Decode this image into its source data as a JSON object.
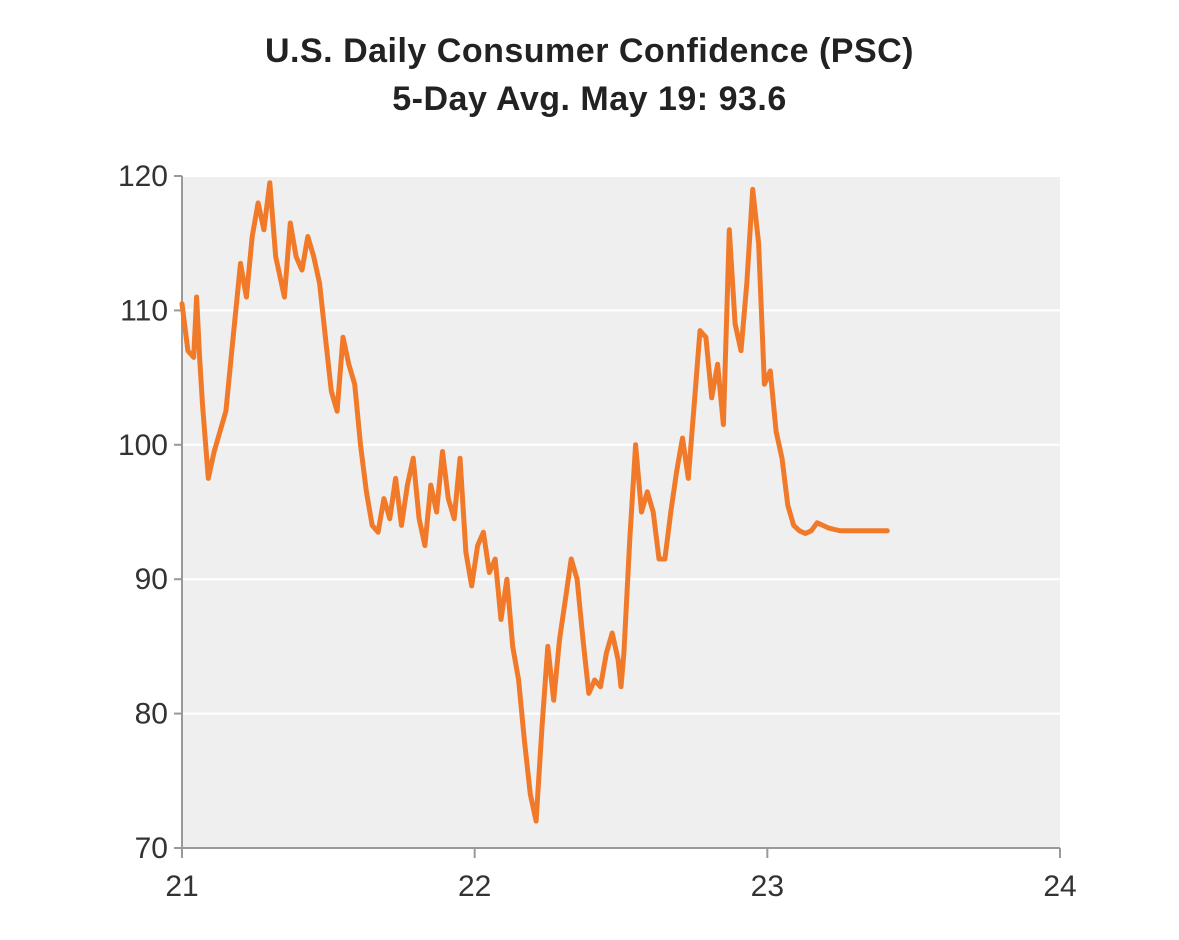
{
  "chart_data": {
    "type": "line",
    "title": "U.S. Daily Consumer Confidence (PSC)",
    "subtitle": "5-Day Avg.  May 19: 93.6",
    "xlabel": "",
    "ylabel": "",
    "xlim": [
      21,
      24
    ],
    "ylim": [
      70,
      120
    ],
    "x_ticks": [
      21,
      22,
      23,
      24
    ],
    "x_tick_labels": [
      "21",
      "22",
      "23",
      "24"
    ],
    "y_ticks": [
      70,
      80,
      90,
      100,
      110,
      120
    ],
    "y_tick_labels": [
      "70",
      "80",
      "90",
      "100",
      "110",
      "120"
    ],
    "grid": true,
    "colors": {
      "line": "#F07A2A",
      "plot_background": "#EFEFEF",
      "grid": "#FFFFFF",
      "axis": "#999999"
    },
    "series": [
      {
        "name": "5-Day Avg.",
        "x": [
          21.0,
          21.02,
          21.04,
          21.05,
          21.06,
          21.07,
          21.09,
          21.11,
          21.13,
          21.15,
          21.17,
          21.2,
          21.22,
          21.24,
          21.26,
          21.28,
          21.3,
          21.32,
          21.34,
          21.35,
          21.37,
          21.39,
          21.41,
          21.43,
          21.45,
          21.47,
          21.49,
          21.51,
          21.53,
          21.55,
          21.57,
          21.59,
          21.61,
          21.63,
          21.65,
          21.67,
          21.69,
          21.71,
          21.73,
          21.75,
          21.77,
          21.79,
          21.81,
          21.83,
          21.85,
          21.87,
          21.89,
          21.91,
          21.93,
          21.95,
          21.97,
          21.99,
          22.01,
          22.03,
          22.05,
          22.07,
          22.09,
          22.11,
          22.13,
          22.15,
          22.17,
          22.19,
          22.21,
          22.23,
          22.25,
          22.27,
          22.29,
          22.31,
          22.33,
          22.35,
          22.37,
          22.39,
          22.41,
          22.43,
          22.45,
          22.47,
          22.49,
          22.5,
          22.51,
          22.53,
          22.55,
          22.57,
          22.59,
          22.61,
          22.63,
          22.65,
          22.67,
          22.69,
          22.71,
          22.73,
          22.75,
          22.77,
          22.79,
          22.81,
          22.83,
          22.85,
          22.87,
          22.89,
          22.91,
          22.93,
          22.95,
          22.97,
          22.99,
          23.01,
          23.03,
          23.05,
          23.07,
          23.09,
          23.11,
          23.13,
          23.15,
          23.17,
          23.19,
          23.21,
          23.23,
          23.25,
          23.27,
          23.29,
          23.31,
          23.32,
          23.33,
          23.34,
          23.35,
          23.36,
          23.37,
          23.38,
          23.39,
          23.4,
          23.41
        ],
        "y": [
          110.5,
          107.0,
          106.5,
          111.0,
          106.5,
          103.0,
          97.5,
          99.5,
          101.0,
          102.5,
          107.0,
          113.5,
          111.0,
          115.5,
          118.0,
          116.0,
          119.5,
          114.0,
          112.0,
          111.0,
          116.5,
          114.0,
          113.0,
          115.5,
          114.0,
          112.0,
          108.0,
          104.0,
          102.5,
          108.0,
          106.0,
          104.5,
          100.0,
          96.5,
          94.0,
          93.5,
          96.0,
          94.5,
          97.5,
          94.0,
          97.0,
          99.0,
          94.5,
          92.5,
          97.0,
          95.0,
          99.5,
          96.0,
          94.5,
          99.0,
          92.0,
          89.5,
          92.5,
          93.5,
          90.5,
          91.5,
          87.0,
          90.0,
          85.0,
          82.5,
          78.0,
          74.0,
          72.0,
          79.0,
          85.0,
          81.0,
          85.5,
          88.5,
          91.5,
          90.0,
          85.5,
          81.5,
          82.5,
          82.0,
          84.5,
          86.0,
          84.0,
          82.0,
          84.5,
          93.0,
          100.0,
          95.0,
          96.5,
          95.0,
          91.5,
          91.5,
          95.0,
          98.0,
          100.5,
          97.5,
          103.0,
          108.5,
          108.0,
          103.5,
          106.0,
          101.5,
          116.0,
          109.0,
          107.0,
          112.0,
          119.0,
          115.0,
          104.5,
          105.5,
          101.0,
          99.0,
          95.5,
          94.0,
          93.6,
          93.4,
          93.6,
          94.2,
          94.0,
          93.8,
          93.7,
          93.6,
          93.6,
          93.6,
          93.6,
          93.6,
          93.6,
          93.6,
          93.6,
          93.6,
          93.6,
          93.6,
          93.6,
          93.6,
          93.6
        ]
      }
    ]
  }
}
